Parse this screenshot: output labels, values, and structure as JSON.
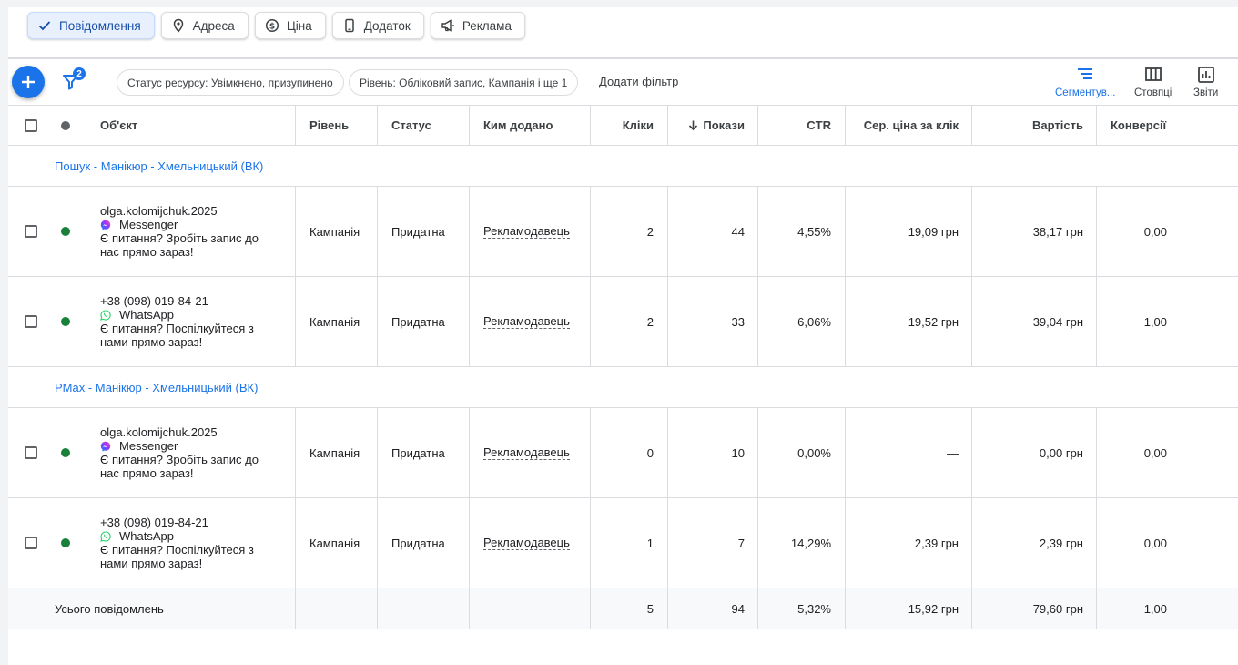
{
  "chips": [
    {
      "label": "Повідомлення",
      "icon": "check-icon",
      "active": true
    },
    {
      "label": "Адреса",
      "icon": "location-pin-icon",
      "active": false
    },
    {
      "label": "Ціна",
      "icon": "price-icon",
      "active": false
    },
    {
      "label": "Додаток",
      "icon": "phone-icon",
      "active": false
    },
    {
      "label": "Реклама",
      "icon": "megaphone-icon",
      "active": false
    }
  ],
  "toolbar": {
    "filter_badge": "2",
    "filter_status": "Статус ресурсу: Увімкнено, призупинено",
    "filter_level": "Рівень: Обліковий запис, Кампанія і ще 1",
    "add_filter": "Додати фільтр",
    "segment_label": "Сегментув...",
    "columns_label": "Стовпці",
    "reports_label": "Звіти"
  },
  "columns": {
    "object": "Об'єкт",
    "level": "Рівень",
    "status": "Статус",
    "added_by": "Ким додано",
    "clicks": "Кліки",
    "impressions": "Покази",
    "ctr": "CTR",
    "avg_cpc": "Сер. ціна за клік",
    "cost": "Вартість",
    "conversions": "Конверсії"
  },
  "groups": [
    {
      "name": "Пошук - Манікюр - Хмельницький (ВК)",
      "rows": [
        {
          "line1": "olga.kolomijchuk.2025",
          "channel": "Messenger",
          "channel_icon": "messenger-icon",
          "text1": "Є питання? Зробіть запис до",
          "text2": "нас прямо зараз!",
          "level": "Кампанія",
          "status": "Придатна",
          "added_by": "Рекламодавець",
          "clicks": "2",
          "impressions": "44",
          "ctr": "4,55%",
          "avg_cpc": "19,09 грн",
          "cost": "38,17 грн",
          "conversions": "0,00"
        },
        {
          "line1": "+38 (098) 019-84-21",
          "channel": "WhatsApp",
          "channel_icon": "whatsapp-icon",
          "text1": "Є питання? Поспілкуйтеся з",
          "text2": "нами прямо зараз!",
          "level": "Кампанія",
          "status": "Придатна",
          "added_by": "Рекламодавець",
          "clicks": "2",
          "impressions": "33",
          "ctr": "6,06%",
          "avg_cpc": "19,52 грн",
          "cost": "39,04 грн",
          "conversions": "1,00"
        }
      ]
    },
    {
      "name": "PMax - Манікюр - Хмельницький (ВК)",
      "rows": [
        {
          "line1": "olga.kolomijchuk.2025",
          "channel": "Messenger",
          "channel_icon": "messenger-icon",
          "text1": "Є питання? Зробіть запис до",
          "text2": "нас прямо зараз!",
          "level": "Кампанія",
          "status": "Придатна",
          "added_by": "Рекламодавець",
          "clicks": "0",
          "impressions": "10",
          "ctr": "0,00%",
          "avg_cpc": "—",
          "cost": "0,00 грн",
          "conversions": "0,00"
        },
        {
          "line1": "+38 (098) 019-84-21",
          "channel": "WhatsApp",
          "channel_icon": "whatsapp-icon",
          "text1": "Є питання? Поспілкуйтеся з",
          "text2": "нами прямо зараз!",
          "level": "Кампанія",
          "status": "Придатна",
          "added_by": "Рекламодавець",
          "clicks": "1",
          "impressions": "7",
          "ctr": "14,29%",
          "avg_cpc": "2,39 грн",
          "cost": "2,39 грн",
          "conversions": "0,00"
        }
      ]
    }
  ],
  "total": {
    "label": "Усього повідомлень",
    "clicks": "5",
    "impressions": "94",
    "ctr": "5,32%",
    "avg_cpc": "15,92 грн",
    "cost": "79,60 грн",
    "conversions": "1,00"
  },
  "colors": {
    "accent": "#1a73e8",
    "status_green": "#188038"
  }
}
